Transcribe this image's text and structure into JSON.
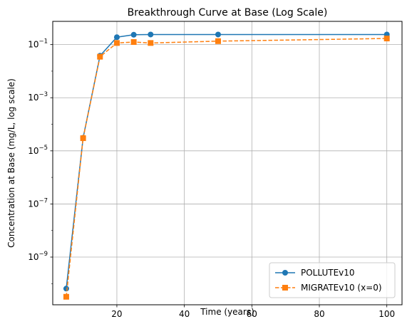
{
  "chart_data": {
    "type": "line",
    "title": "Breakthrough Curve at Base (Log Scale)",
    "xlabel": "Time (years)",
    "ylabel": "Concentration at Base (mg/L, log scale)",
    "xlim": [
      1,
      104.5
    ],
    "ylim": [
      1.6e-11,
      0.75
    ],
    "yscale": "log",
    "grid": true,
    "legend_position": "lower-right",
    "x_ticks": [
      20,
      40,
      60,
      80,
      100
    ],
    "x_tick_labels": [
      "20",
      "40",
      "60",
      "80",
      "100"
    ],
    "y_ticks": [
      1e-09,
      1e-07,
      1e-05,
      0.001,
      0.1
    ],
    "y_tick_labels": [
      {
        "base": "10",
        "exp": "−9"
      },
      {
        "base": "10",
        "exp": "−7"
      },
      {
        "base": "10",
        "exp": "−5"
      },
      {
        "base": "10",
        "exp": "−3"
      },
      {
        "base": "10",
        "exp": "−1"
      }
    ],
    "series": [
      {
        "name": "POLLUTEv10",
        "color": "#1f77b4",
        "line_style": "solid",
        "marker": "circle",
        "x": [
          5,
          10,
          15,
          20,
          25,
          30,
          50,
          100
        ],
        "y": [
          6.5e-11,
          3.1e-05,
          0.038,
          0.19,
          0.235,
          0.24,
          0.24,
          0.24
        ]
      },
      {
        "name": "MIGRATEv10 (x=0)",
        "color": "#ff7f0e",
        "line_style": "dashed",
        "marker": "square",
        "x": [
          5,
          10,
          15,
          20,
          25,
          30,
          50,
          100
        ],
        "y": [
          3.2e-11,
          3e-05,
          0.035,
          0.115,
          0.125,
          0.115,
          0.135,
          0.17
        ]
      }
    ]
  }
}
